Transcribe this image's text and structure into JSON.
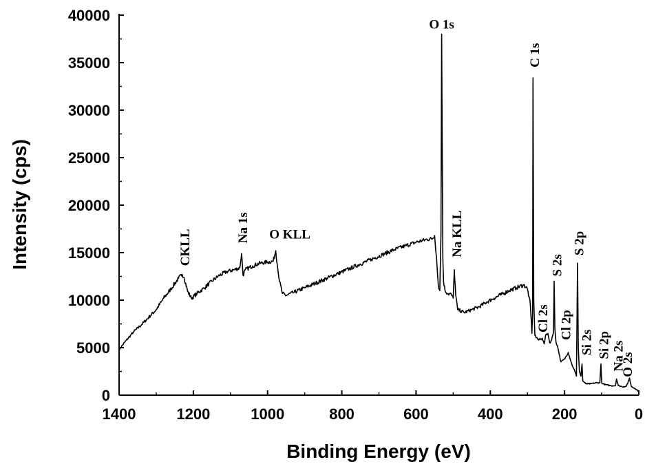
{
  "chart_data": {
    "type": "line",
    "title": "",
    "xlabel": "Binding Energy (eV)",
    "ylabel": "Intensity (cps)",
    "xlim": [
      1400,
      0
    ],
    "ylim": [
      0,
      40000
    ],
    "x_ticks": [
      1400,
      1200,
      1000,
      800,
      600,
      400,
      200,
      0
    ],
    "y_ticks": [
      0,
      5000,
      10000,
      15000,
      20000,
      25000,
      30000,
      35000,
      40000
    ],
    "grid": false,
    "legend": "none",
    "series": [
      {
        "color": "#000000",
        "x": [
          1400,
          1380,
          1360,
          1340,
          1320,
          1300,
          1280,
          1260,
          1240,
          1230,
          1225,
          1215,
          1205,
          1190,
          1170,
          1150,
          1130,
          1110,
          1090,
          1075,
          1070,
          1066,
          1060,
          1040,
          1020,
          1000,
          985,
          978,
          974,
          968,
          960,
          950,
          930,
          900,
          870,
          840,
          810,
          780,
          750,
          720,
          690,
          660,
          630,
          600,
          570,
          555,
          550,
          545,
          540,
          536,
          533,
          531,
          528,
          526,
          522,
          515,
          505,
          500,
          497,
          493,
          488,
          470,
          450,
          430,
          410,
          390,
          370,
          350,
          330,
          310,
          300,
          292,
          288,
          286,
          285,
          283,
          280,
          270,
          260,
          255,
          250,
          245,
          240,
          235,
          230,
          228,
          226,
          223,
          218,
          210,
          200,
          190,
          180,
          172,
          168,
          165,
          163,
          160,
          156,
          153,
          151,
          148,
          143,
          130,
          115,
          105,
          102,
          100,
          97,
          90,
          75,
          63,
          60,
          55,
          45,
          35,
          30,
          25,
          20,
          10,
          0
        ],
        "y": [
          4800,
          5800,
          6700,
          7400,
          8200,
          9000,
          10200,
          11200,
          12300,
          12700,
          12400,
          10900,
          10200,
          10700,
          11300,
          12000,
          12600,
          13000,
          13200,
          13400,
          14900,
          12600,
          13200,
          13600,
          13900,
          14000,
          14100,
          15200,
          13800,
          12000,
          10700,
          10500,
          10800,
          11300,
          11800,
          12300,
          12800,
          13300,
          13800,
          14300,
          14800,
          15300,
          15700,
          16100,
          16400,
          16500,
          16800,
          14500,
          11500,
          11000,
          17000,
          38000,
          14500,
          12000,
          11000,
          10700,
          10600,
          10200,
          13200,
          10500,
          9000,
          8700,
          9000,
          9300,
          9800,
          10200,
          10600,
          11000,
          11300,
          11600,
          11200,
          9500,
          6500,
          9000,
          33400,
          10000,
          6300,
          5800,
          6000,
          5400,
          6400,
          6500,
          5500,
          5800,
          6600,
          12000,
          7000,
          5600,
          5000,
          3500,
          3800,
          4500,
          3200,
          2500,
          2000,
          13900,
          5000,
          2500,
          2000,
          3300,
          1500,
          1400,
          1200,
          1200,
          1300,
          1300,
          3300,
          1300,
          1200,
          1100,
          1000,
          1000,
          1700,
          1000,
          900,
          900,
          1200,
          1800,
          900,
          700,
          400
        ]
      }
    ],
    "annotations": [
      {
        "text": "CKLL",
        "x": 1222,
        "y": 13600,
        "rotation": -90
      },
      {
        "text": "Na 1s",
        "x": 1066,
        "y": 16000,
        "rotation": -90
      },
      {
        "text": "O KLL",
        "x": 940,
        "y": 16500,
        "rotation": 0
      },
      {
        "text": "O 1s",
        "x": 531,
        "y": 38600,
        "rotation": 0
      },
      {
        "text": "Na KLL",
        "x": 490,
        "y": 14500,
        "rotation": -90
      },
      {
        "text": "C 1s",
        "x": 280,
        "y": 34500,
        "rotation": -90
      },
      {
        "text": "Cl 2s",
        "x": 258,
        "y": 6600,
        "rotation": -90
      },
      {
        "text": "S 2s",
        "x": 220,
        "y": 12500,
        "rotation": -90
      },
      {
        "text": "Cl 2p",
        "x": 196,
        "y": 5800,
        "rotation": -90
      },
      {
        "text": "S 2p",
        "x": 160,
        "y": 14700,
        "rotation": -90
      },
      {
        "text": "Si 2s",
        "x": 140,
        "y": 4200,
        "rotation": -90
      },
      {
        "text": "Si 2p",
        "x": 94,
        "y": 3800,
        "rotation": -90
      },
      {
        "text": "Na 2s",
        "x": 55,
        "y": 2500,
        "rotation": -90
      },
      {
        "text": "O 2s",
        "x": 30,
        "y": 1900,
        "rotation": -90
      }
    ]
  }
}
